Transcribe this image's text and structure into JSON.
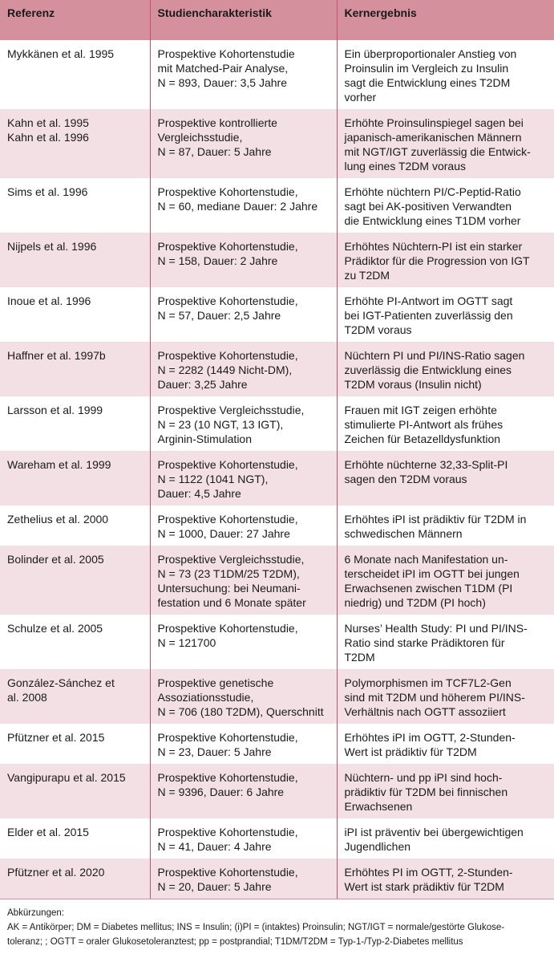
{
  "table": {
    "header": [
      "Referenz",
      "Studiencharakteristik",
      "Kernergebnis"
    ],
    "rows": [
      [
        [
          "Mykkänen et al. 1995"
        ],
        [
          "Prospektive Kohortenstudie",
          "mit Matched-Pair Analyse,",
          "N = 893, Dauer: 3,5 Jahre"
        ],
        [
          "Ein überproportionaler Anstieg von",
          "Proinsulin im Vergleich zu Insulin",
          "sagt die Entwicklung eines T2DM",
          "vorher"
        ]
      ],
      [
        [
          "Kahn et al. 1995",
          "Kahn et al. 1996"
        ],
        [
          "Prospektive kontrollierte",
          "Vergleichsstudie,",
          "N = 87, Dauer: 5 Jahre"
        ],
        [
          "Erhöhte Proinsulinspiegel sagen bei",
          "japanisch-amerikanischen Männern",
          "mit NGT/IGT zuverlässig die Entwick-",
          "lung eines T2DM voraus"
        ]
      ],
      [
        [
          "Sims et al. 1996"
        ],
        [
          "Prospektive Kohortenstudie,",
          "N = 60, mediane Dauer: 2 Jahre"
        ],
        [
          "Erhöhte nüchtern PI/C-Peptid-Ratio",
          "sagt bei AK-positiven Verwandten",
          "die Entwicklung eines T1DM vorher"
        ]
      ],
      [
        [
          "Nijpels et al. 1996"
        ],
        [
          "Prospektive Kohortenstudie,",
          "N = 158, Dauer: 2 Jahre"
        ],
        [
          "Erhöhtes Nüchtern-PI ist ein starker",
          "Prädiktor für die Progression von IGT",
          "zu T2DM"
        ]
      ],
      [
        [
          "Inoue et al. 1996"
        ],
        [
          "Prospektive Kohortenstudie,",
          "N = 57, Dauer: 2,5 Jahre"
        ],
        [
          "Erhöhte PI-Antwort im OGTT sagt",
          "bei IGT-Patienten zuverlässig den",
          "T2DM voraus"
        ]
      ],
      [
        [
          "Haffner et al. 1997b"
        ],
        [
          "Prospektive Kohortenstudie,",
          "N = 2282 (1449 Nicht-DM),",
          "Dauer: 3,25 Jahre"
        ],
        [
          "Nüchtern PI und PI/INS-Ratio sagen",
          "zuverlässig die Entwicklung eines",
          "T2DM voraus (Insulin nicht)"
        ]
      ],
      [
        [
          "Larsson et al. 1999"
        ],
        [
          "Prospektive Vergleichsstudie,",
          "N = 23 (10 NGT, 13 IGT),",
          "Arginin-Stimulation"
        ],
        [
          "Frauen mit IGT zeigen erhöhte",
          "stimulierte PI-Antwort als frühes",
          "Zeichen für Betazelldysfunktion"
        ]
      ],
      [
        [
          "Wareham et al. 1999"
        ],
        [
          "Prospektive Kohortenstudie,",
          "N = 1122 (1041 NGT),",
          "Dauer: 4,5 Jahre"
        ],
        [
          "Erhöhte nüchterne 32,33-Split-PI",
          "sagen den T2DM voraus"
        ]
      ],
      [
        [
          "Zethelius et al. 2000"
        ],
        [
          "Prospektive Kohortenstudie,",
          "N = 1000, Dauer: 27 Jahre"
        ],
        [
          "Erhöhtes iPI ist prädiktiv für T2DM in",
          "schwedischen Männern"
        ]
      ],
      [
        [
          "Bolinder et al. 2005"
        ],
        [
          "Prospektive Vergleichsstudie,",
          "N = 73 (23 T1DM/25 T2DM),",
          "Untersuchung: bei Neumani-",
          "festation und 6 Monate später"
        ],
        [
          "6 Monate nach Manifestation un-",
          "terscheidet iPI im OGTT bei jungen",
          "Erwachsenen zwischen T1DM (PI",
          "niedrig) und T2DM (PI hoch)"
        ]
      ],
      [
        [
          "Schulze et al. 2005"
        ],
        [
          "Prospektive Kohortenstudie,",
          "N = 121700"
        ],
        [
          "Nurses’ Health Study: PI und PI/INS-",
          "Ratio sind starke Prädiktoren für",
          "T2DM"
        ]
      ],
      [
        [
          "González-Sánchez et",
          "al. 2008"
        ],
        [
          "Prospektive genetische",
          "Assoziationsstudie,",
          "N = 706 (180 T2DM), Querschnitt"
        ],
        [
          "Polymorphismen im TCF7L2-Gen",
          "sind mit T2DM und höherem PI/INS-",
          "Verhältnis nach OGTT assoziiert"
        ]
      ],
      [
        [
          "Pfützner et al. 2015"
        ],
        [
          "Prospektive Kohortenstudie,",
          "N = 23, Dauer: 5 Jahre"
        ],
        [
          "Erhöhtes iPI im OGTT, 2-Stunden-",
          "Wert ist prädiktiv für T2DM"
        ]
      ],
      [
        [
          "Vangipurapu et al. 2015"
        ],
        [
          "Prospektive Kohortenstudie,",
          "N = 9396, Dauer: 6 Jahre"
        ],
        [
          "Nüchtern- und pp iPI sind hoch-",
          "prädiktiv für T2DM bei finnischen",
          "Erwachsenen"
        ]
      ],
      [
        [
          "Elder et al. 2015"
        ],
        [
          "Prospektive Kohortenstudie,",
          "N = 41, Dauer: 4 Jahre"
        ],
        [
          "iPI ist präventiv bei übergewichtigen",
          "Jugendlichen"
        ]
      ],
      [
        [
          "Pfützner et al. 2020"
        ],
        [
          "Prospektive Kohortenstudie,",
          "N = 20, Dauer: 5 Jahre"
        ],
        [
          "Erhöhtes PI im OGTT, 2-Stunden-",
          "Wert ist stark prädiktiv für T2DM"
        ]
      ]
    ]
  },
  "footer": [
    "Abkürzungen:",
    "AK = Antikörper; DM = Diabetes mellitus; INS = Insulin; (i)PI = (intaktes) Proinsulin; NGT/IGT = normale/gestörte Glukose-",
    "toleranz; ; OGTT = oraler Glukosetoleranztest; pp = postprandial; T1DM/T2DM = Typ-1-/Typ-2-Diabetes mellitus"
  ]
}
